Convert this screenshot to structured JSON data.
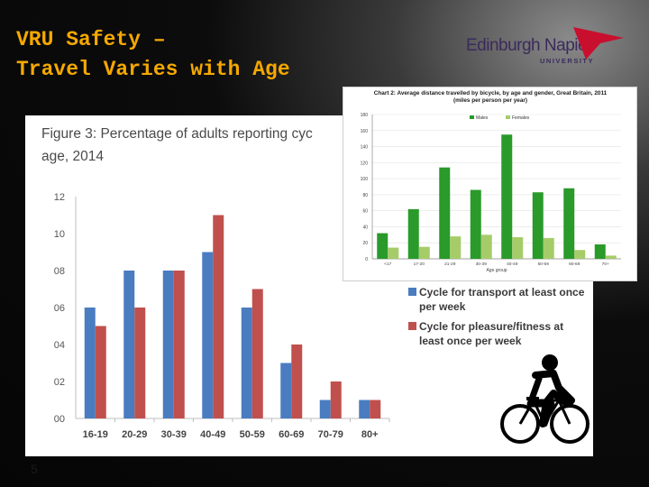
{
  "slide": {
    "title_line1": "VRU Safety –",
    "title_line2": "Travel Varies with Age",
    "page_number": "5",
    "accent_color": "#f5a800"
  },
  "logo": {
    "name": "Edinburgh Napier",
    "sub": "UNIVERSITY",
    "arrow_color": "#c8102e"
  },
  "figure3": {
    "title_line1": "Figure 3: Percentage of adults reporting cyc",
    "title_line2": "age, 2014",
    "legend": [
      {
        "label": "Cycle for transport at least once per week",
        "color": "#4a7cc0"
      },
      {
        "label": "Cycle for pleasure/fitness at least once per week",
        "color": "#c0504d"
      }
    ]
  },
  "chart_data": [
    {
      "type": "bar",
      "title": "Figure 3: Percentage of adults reporting cyc age, 2014",
      "categories": [
        "16-19",
        "20-29",
        "30-39",
        "40-49",
        "50-59",
        "60-69",
        "70-79",
        "80+"
      ],
      "series": [
        {
          "name": "Cycle for transport at least once per week",
          "values": [
            6,
            8,
            8,
            9,
            6,
            3,
            1,
            1
          ],
          "color": "#4a7cc0"
        },
        {
          "name": "Cycle for pleasure/fitness at least once per week",
          "values": [
            5,
            6,
            8,
            11,
            7,
            4,
            2,
            1
          ],
          "color": "#c0504d"
        }
      ],
      "yticks": [
        "00",
        "02",
        "04",
        "06",
        "08",
        "10",
        "12"
      ],
      "ylim": [
        0,
        12
      ],
      "grid": false
    },
    {
      "type": "bar",
      "title": "Chart 2: Average distance travelled by bicycle, by age and gender, Great Britain, 2011",
      "subtitle": "(miles per person per year)",
      "categories": [
        "<17",
        "17-20",
        "21-29",
        "30-39",
        "40-49",
        "50-59",
        "60-69",
        "70+"
      ],
      "xlabel": "Age group",
      "series": [
        {
          "name": "Males",
          "values": [
            32,
            62,
            114,
            86,
            155,
            83,
            88,
            18
          ],
          "color": "#2a9a2a"
        },
        {
          "name": "Females",
          "values": [
            14,
            15,
            28,
            30,
            27,
            26,
            11,
            4
          ],
          "color": "#a6cc6a"
        }
      ],
      "yticks": [
        "0",
        "20",
        "40",
        "60",
        "80",
        "100",
        "120",
        "140",
        "160",
        "180"
      ],
      "ylim": [
        0,
        180
      ],
      "grid": true
    }
  ]
}
